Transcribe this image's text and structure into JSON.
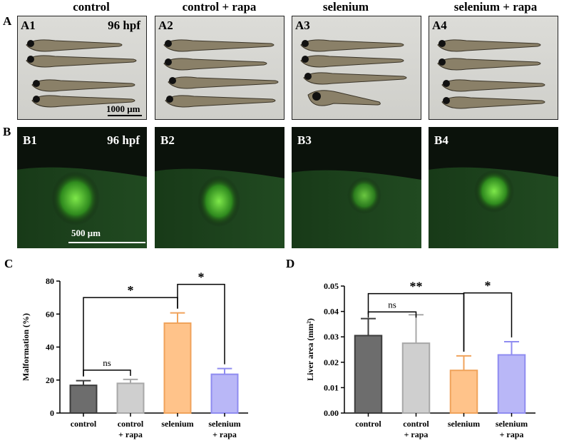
{
  "column_headers": [
    "control",
    "control + rapa",
    "selenium",
    "selenium + rapa"
  ],
  "row_letters": {
    "A": "A",
    "B": "B"
  },
  "panels_a": [
    "A1",
    "A2",
    "A3",
    "A4"
  ],
  "panels_b": [
    "B1",
    "B2",
    "B3",
    "B4"
  ],
  "stage_a": "96 hpf",
  "stage_b": "96 hpf",
  "scale_a": "1000 μm",
  "scale_b": "500 μm",
  "chart_data": [
    {
      "type": "bar",
      "panel_letter": "C",
      "categories": [
        "control",
        "control\n+ rapa",
        "selenium",
        "selenium\n+ rapa"
      ],
      "values": [
        16.8,
        18.0,
        54.5,
        23.5
      ],
      "errors": [
        2.8,
        2.4,
        6.2,
        3.5
      ],
      "ylabel": "Malformation (%)",
      "ylim": [
        0,
        80
      ],
      "yticks": [
        0,
        20,
        40,
        60,
        80
      ],
      "colors": [
        "#6d6d6d",
        "#cfcfcf",
        "#ffc38a",
        "#b9b7f7"
      ],
      "edge_colors": [
        "#3c3c3c",
        "#a8a8a8",
        "#f0a35b",
        "#8f8cf0"
      ],
      "annotations": [
        {
          "from": 0,
          "to": 1,
          "label": "ns",
          "y": 26
        },
        {
          "from": 0,
          "to": 2,
          "label": "*",
          "y": 70
        },
        {
          "from": 2,
          "to": 3,
          "label": "*",
          "y": 78
        }
      ]
    },
    {
      "type": "bar",
      "panel_letter": "D",
      "categories": [
        "control",
        "control\n+ rapa",
        "selenium",
        "selenium\n+ rapa"
      ],
      "values": [
        0.0305,
        0.0275,
        0.0168,
        0.0229
      ],
      "errors": [
        0.0067,
        0.0112,
        0.0057,
        0.0052
      ],
      "ylabel": "Liver area (mm²)",
      "ylim": [
        0,
        0.05
      ],
      "yticks": [
        "0.00",
        "0.01",
        "0.02",
        "0.03",
        "0.04",
        "0.05"
      ],
      "colors": [
        "#6d6d6d",
        "#cfcfcf",
        "#ffc38a",
        "#b9b7f7"
      ],
      "edge_colors": [
        "#3c3c3c",
        "#a8a8a8",
        "#f0a35b",
        "#8f8cf0"
      ],
      "annotations": [
        {
          "from": 0,
          "to": 1,
          "label": "ns",
          "y": 0.0398
        },
        {
          "from": 0,
          "to": 2,
          "label": "**",
          "y": 0.047
        },
        {
          "from": 2,
          "to": 3,
          "label": "*",
          "y": 0.0473
        }
      ]
    }
  ]
}
